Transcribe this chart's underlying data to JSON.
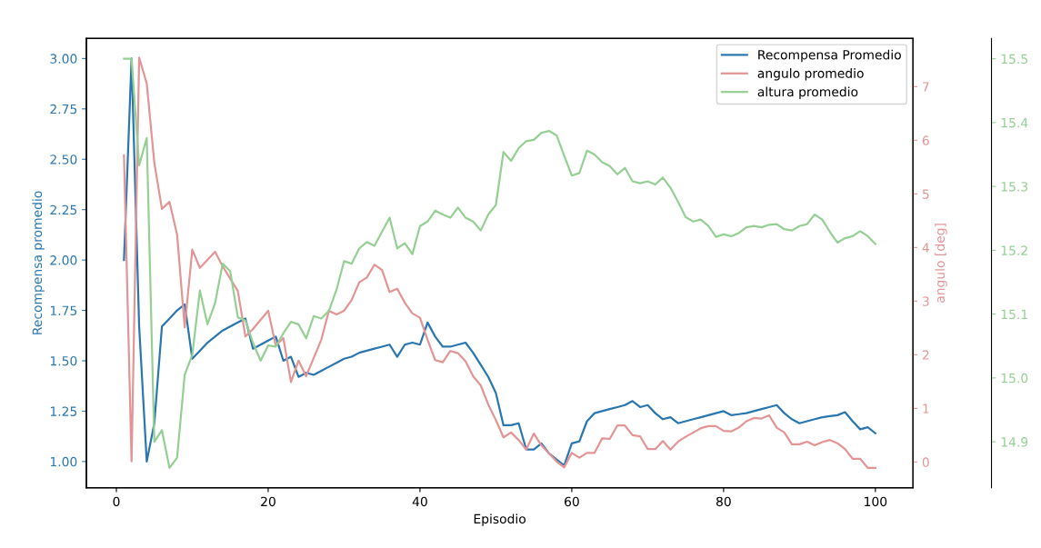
{
  "chart_data": {
    "type": "line",
    "xlabel": "Episodio",
    "ylabel": "Recompensa promedio",
    "y2label": "angulo [deg]",
    "x": [
      1,
      2,
      3,
      4,
      5,
      6,
      7,
      8,
      9,
      10,
      11,
      12,
      13,
      14,
      15,
      16,
      17,
      18,
      19,
      20,
      21,
      22,
      23,
      24,
      25,
      26,
      27,
      28,
      29,
      30,
      31,
      32,
      33,
      34,
      35,
      36,
      37,
      38,
      39,
      40,
      41,
      42,
      43,
      44,
      45,
      46,
      47,
      48,
      49,
      50,
      51,
      52,
      53,
      54,
      55,
      56,
      57,
      58,
      59,
      60,
      61,
      62,
      63,
      64,
      65,
      66,
      67,
      68,
      69,
      70,
      71,
      72,
      73,
      74,
      75,
      76,
      77,
      78,
      79,
      80,
      81,
      82,
      83,
      84,
      85,
      86,
      87,
      88,
      89,
      90,
      91,
      92,
      93,
      94,
      95,
      96,
      97,
      98,
      99,
      100
    ],
    "xlim": [
      -3.95,
      104.95
    ],
    "xticks": [
      0,
      20,
      40,
      60,
      80,
      100
    ],
    "ylim": [
      0.87,
      3.1
    ],
    "yticks": [
      {
        "value": 1.0,
        "label": "1.00"
      },
      {
        "value": 1.25,
        "label": "1.25"
      },
      {
        "value": 1.5,
        "label": "1.50"
      },
      {
        "value": 1.75,
        "label": "1.75"
      },
      {
        "value": 2.0,
        "label": "2.00"
      },
      {
        "value": 2.25,
        "label": "2.25"
      },
      {
        "value": 2.5,
        "label": "2.50"
      },
      {
        "value": 2.75,
        "label": "2.75"
      },
      {
        "value": 3.0,
        "label": "3.00"
      }
    ],
    "y2lim": [
      -0.48,
      7.9
    ],
    "y2ticks": [
      0,
      1,
      2,
      3,
      4,
      5,
      6,
      7
    ],
    "y3lim": [
      14.828,
      15.532
    ],
    "y3ticks": [
      14.9,
      {
        "value": 15.0,
        "label": "15.0"
      },
      15.1,
      15.2,
      15.3,
      15.4,
      15.5
    ],
    "legend": "top right",
    "grid": false,
    "series": [
      {
        "name": "Recompensa Promedio",
        "color": "#2a77b0",
        "values": [
          2.0,
          3.0,
          1.67,
          1.0,
          1.19,
          1.67,
          1.71,
          1.75,
          1.78,
          1.51,
          1.55,
          1.59,
          1.62,
          1.65,
          1.67,
          1.69,
          1.71,
          1.56,
          1.58,
          1.6,
          1.62,
          1.5,
          1.52,
          1.42,
          1.44,
          1.43,
          1.45,
          1.47,
          1.49,
          1.51,
          1.52,
          1.54,
          1.55,
          1.56,
          1.57,
          1.58,
          1.52,
          1.58,
          1.59,
          1.58,
          1.69,
          1.62,
          1.57,
          1.57,
          1.58,
          1.59,
          1.54,
          1.48,
          1.42,
          1.34,
          1.18,
          1.18,
          1.19,
          1.06,
          1.06,
          1.09,
          1.04,
          1.01,
          0.98,
          1.09,
          1.1,
          1.2,
          1.24,
          1.25,
          1.26,
          1.27,
          1.28,
          1.3,
          1.27,
          1.28,
          1.24,
          1.21,
          1.22,
          1.19,
          1.2,
          1.21,
          1.22,
          1.23,
          1.24,
          1.25,
          1.23,
          1.235,
          1.24,
          1.25,
          1.26,
          1.27,
          1.28,
          1.24,
          1.21,
          1.19,
          1.2,
          1.21,
          1.22,
          1.225,
          1.23,
          1.245,
          1.2,
          1.16,
          1.17,
          1.14
        ]
      },
      {
        "name": "angulo promedio",
        "color": "#e39494",
        "axis": "y2",
        "values": [
          5.72,
          0.01,
          7.54,
          7.06,
          5.58,
          4.72,
          4.85,
          4.24,
          2.51,
          3.96,
          3.62,
          3.77,
          3.92,
          3.65,
          3.42,
          3.19,
          2.34,
          2.48,
          2.65,
          2.82,
          2.17,
          2.31,
          1.49,
          1.89,
          1.6,
          1.94,
          2.28,
          2.82,
          2.75,
          2.82,
          3.02,
          3.35,
          3.44,
          3.68,
          3.58,
          3.17,
          3.23,
          2.97,
          2.77,
          2.69,
          2.28,
          1.9,
          1.86,
          2.07,
          2.03,
          1.88,
          1.6,
          1.43,
          1.07,
          0.78,
          0.46,
          0.55,
          0.41,
          0.23,
          0.53,
          0.31,
          0.16,
          0.01,
          -0.1,
          0.17,
          0.08,
          0.17,
          0.17,
          0.44,
          0.43,
          0.68,
          0.68,
          0.5,
          0.48,
          0.24,
          0.24,
          0.39,
          0.23,
          0.38,
          0.47,
          0.55,
          0.63,
          0.67,
          0.67,
          0.58,
          0.57,
          0.64,
          0.76,
          0.82,
          0.81,
          0.87,
          0.64,
          0.55,
          0.33,
          0.33,
          0.38,
          0.31,
          0.37,
          0.41,
          0.35,
          0.24,
          0.06,
          0.06,
          -0.11,
          -0.11
        ]
      },
      {
        "name": "altura promedio",
        "color": "#96cf94",
        "axis": "y3",
        "values": [
          15.5,
          15.5,
          15.333,
          15.376,
          14.9,
          14.918,
          14.859,
          14.875,
          15.005,
          15.036,
          15.137,
          15.084,
          15.117,
          15.179,
          15.167,
          15.095,
          15.09,
          15.055,
          15.027,
          15.051,
          15.049,
          15.07,
          15.088,
          15.084,
          15.062,
          15.097,
          15.093,
          15.105,
          15.138,
          15.183,
          15.179,
          15.203,
          15.213,
          15.207,
          15.229,
          15.251,
          15.203,
          15.211,
          15.194,
          15.238,
          15.245,
          15.262,
          15.256,
          15.251,
          15.267,
          15.251,
          15.245,
          15.231,
          15.256,
          15.271,
          15.354,
          15.34,
          15.36,
          15.371,
          15.373,
          15.384,
          15.387,
          15.38,
          15.348,
          15.317,
          15.321,
          15.356,
          15.35,
          15.338,
          15.332,
          15.319,
          15.329,
          15.308,
          15.305,
          15.308,
          15.303,
          15.314,
          15.298,
          15.276,
          15.252,
          15.245,
          15.248,
          15.238,
          15.221,
          15.225,
          15.222,
          15.227,
          15.236,
          15.238,
          15.236,
          15.24,
          15.241,
          15.233,
          15.231,
          15.238,
          15.241,
          15.256,
          15.248,
          15.229,
          15.212,
          15.219,
          15.222,
          15.23,
          15.222,
          15.21
        ]
      }
    ]
  }
}
